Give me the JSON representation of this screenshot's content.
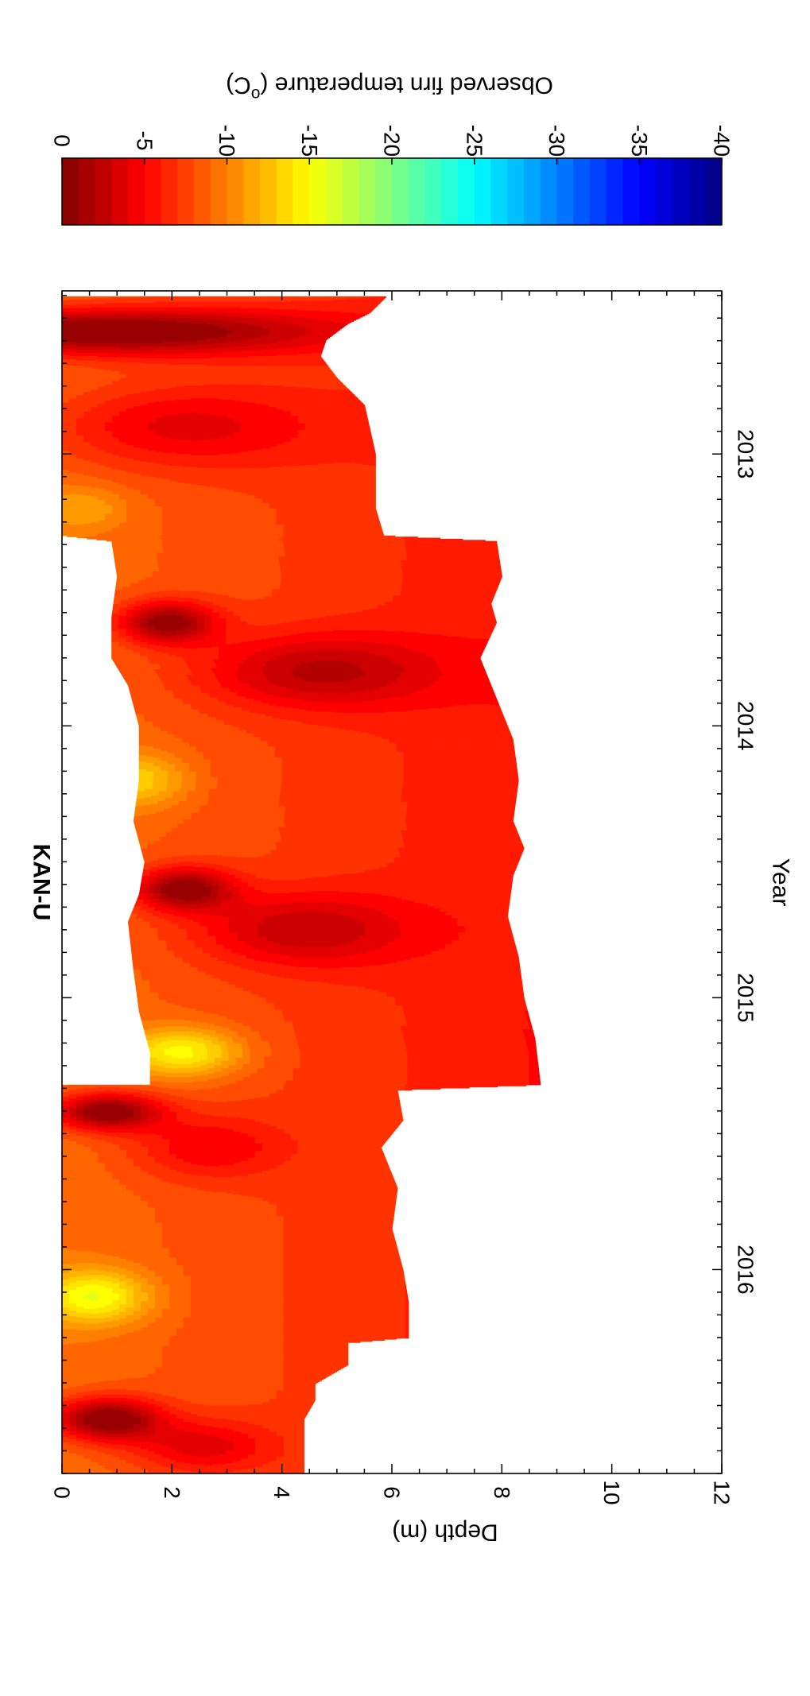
{
  "chart_data": {
    "type": "heatmap",
    "title": "KAN-U",
    "xlabel": "Year",
    "ylabel": "Depth (m)",
    "xlim": [
      2012.4,
      2016.75
    ],
    "ylim": [
      0,
      12
    ],
    "y_inverted": true,
    "x_ticks": [
      2013,
      2014,
      2015,
      2016
    ],
    "y_ticks": [
      0,
      2,
      4,
      6,
      8,
      10,
      12
    ],
    "grid": false,
    "colorbar": {
      "label": "Observed firn temperature (°C)",
      "label_html": "Observed firn temperature (<tspan baseline-shift='super' font-size='70%'>o</tspan>C)",
      "ticks": [
        0,
        -5,
        -10,
        -15,
        -20,
        -25,
        -30,
        -35,
        -40
      ],
      "range": [
        -40,
        0
      ],
      "colormap": "jet (reversed: 0 = dark red, -40 = dark blue)"
    },
    "orientation": "figure rotated 90 degrees clockwise",
    "sensor_segments": [
      {
        "x_start": 2012.42,
        "x_end": 2013.3,
        "top": [
          [
            2012.42,
            0
          ],
          [
            2013.3,
            0
          ]
        ],
        "bottom": [
          [
            2012.42,
            5.9
          ],
          [
            2012.48,
            5.6
          ],
          [
            2012.52,
            5.2
          ],
          [
            2012.58,
            4.8
          ],
          [
            2012.64,
            4.7
          ],
          [
            2012.72,
            5.0
          ],
          [
            2012.82,
            5.5
          ],
          [
            2013.0,
            5.7
          ],
          [
            2013.2,
            5.7
          ],
          [
            2013.3,
            5.85
          ]
        ]
      },
      {
        "x_start": 2013.3,
        "x_end": 2015.32,
        "top": [
          [
            2013.3,
            0
          ],
          [
            2013.32,
            0.9
          ],
          [
            2013.45,
            1.0
          ],
          [
            2013.6,
            0.9
          ],
          [
            2013.75,
            0.9
          ],
          [
            2013.85,
            1.2
          ],
          [
            2014.0,
            1.4
          ],
          [
            2014.2,
            1.4
          ],
          [
            2014.35,
            1.3
          ],
          [
            2014.5,
            1.5
          ],
          [
            2014.62,
            1.4
          ],
          [
            2014.72,
            1.2
          ],
          [
            2014.9,
            1.3
          ],
          [
            2015.05,
            1.4
          ],
          [
            2015.2,
            1.6
          ],
          [
            2015.32,
            1.6
          ]
        ],
        "bottom": [
          [
            2013.3,
            5.85
          ],
          [
            2013.32,
            7.9
          ],
          [
            2013.45,
            8.0
          ],
          [
            2013.55,
            7.8
          ],
          [
            2013.62,
            7.9
          ],
          [
            2013.75,
            7.6
          ],
          [
            2013.85,
            7.8
          ],
          [
            2013.95,
            8.0
          ],
          [
            2014.05,
            8.2
          ],
          [
            2014.2,
            8.3
          ],
          [
            2014.35,
            8.2
          ],
          [
            2014.45,
            8.4
          ],
          [
            2014.55,
            8.2
          ],
          [
            2014.7,
            8.1
          ],
          [
            2014.85,
            8.3
          ],
          [
            2015.0,
            8.4
          ],
          [
            2015.15,
            8.6
          ],
          [
            2015.32,
            8.7
          ]
        ]
      },
      {
        "x_start": 2015.32,
        "x_end": 2016.75,
        "top": [
          [
            2015.32,
            0
          ],
          [
            2016.75,
            0
          ]
        ],
        "bottom": [
          [
            2015.32,
            8.7
          ],
          [
            2015.34,
            6.1
          ],
          [
            2015.45,
            6.2
          ],
          [
            2015.55,
            5.8
          ],
          [
            2015.7,
            6.1
          ],
          [
            2015.85,
            6.0
          ],
          [
            2016.0,
            6.2
          ],
          [
            2016.12,
            6.3
          ],
          [
            2016.25,
            6.3
          ],
          [
            2016.27,
            5.2
          ],
          [
            2016.35,
            5.2
          ],
          [
            2016.42,
            4.6
          ],
          [
            2016.48,
            4.6
          ],
          [
            2016.55,
            4.4
          ],
          [
            2016.65,
            4.4
          ],
          [
            2016.75,
            4.4
          ]
        ]
      }
    ],
    "warm_events": [
      {
        "x": 2012.55,
        "sx": 0.09,
        "d": 0.5,
        "sd": 4.2,
        "strength": 1.55
      },
      {
        "x": 2012.9,
        "sx": 0.16,
        "d": 2.0,
        "sd": 2.6,
        "strength": 0.7
      },
      {
        "x": 2013.62,
        "sx": 0.08,
        "d": 1.9,
        "sd": 0.9,
        "strength": 1.3
      },
      {
        "x": 2013.8,
        "sx": 0.14,
        "d": 4.6,
        "sd": 2.2,
        "strength": 0.85
      },
      {
        "x": 2014.6,
        "sx": 0.08,
        "d": 2.2,
        "sd": 0.9,
        "strength": 1.3
      },
      {
        "x": 2014.75,
        "sx": 0.14,
        "d": 4.3,
        "sd": 2.0,
        "strength": 0.8
      },
      {
        "x": 2015.42,
        "sx": 0.07,
        "d": 0.8,
        "sd": 1.0,
        "strength": 1.45
      },
      {
        "x": 2015.55,
        "sx": 0.12,
        "d": 2.6,
        "sd": 1.4,
        "strength": 0.6
      },
      {
        "x": 2016.55,
        "sx": 0.08,
        "d": 0.8,
        "sd": 1.0,
        "strength": 1.5
      },
      {
        "x": 2016.65,
        "sx": 0.1,
        "d": 2.5,
        "sd": 1.3,
        "strength": 0.7
      }
    ],
    "cold_events": [
      {
        "x": 2014.2,
        "sx": 0.1,
        "d": 1.4,
        "sd": 0.9,
        "strength": 0.75
      },
      {
        "x": 2015.2,
        "sx": 0.09,
        "d": 2.2,
        "sd": 1.1,
        "strength": 1.1
      },
      {
        "x": 2016.1,
        "sx": 0.1,
        "d": 0.6,
        "sd": 1.0,
        "strength": 1.1
      },
      {
        "x": 2013.2,
        "sx": 0.08,
        "d": 0.4,
        "sd": 0.8,
        "strength": 0.4
      }
    ],
    "background": {
      "base": -8.8,
      "depth_gradient": 0.45
    }
  }
}
